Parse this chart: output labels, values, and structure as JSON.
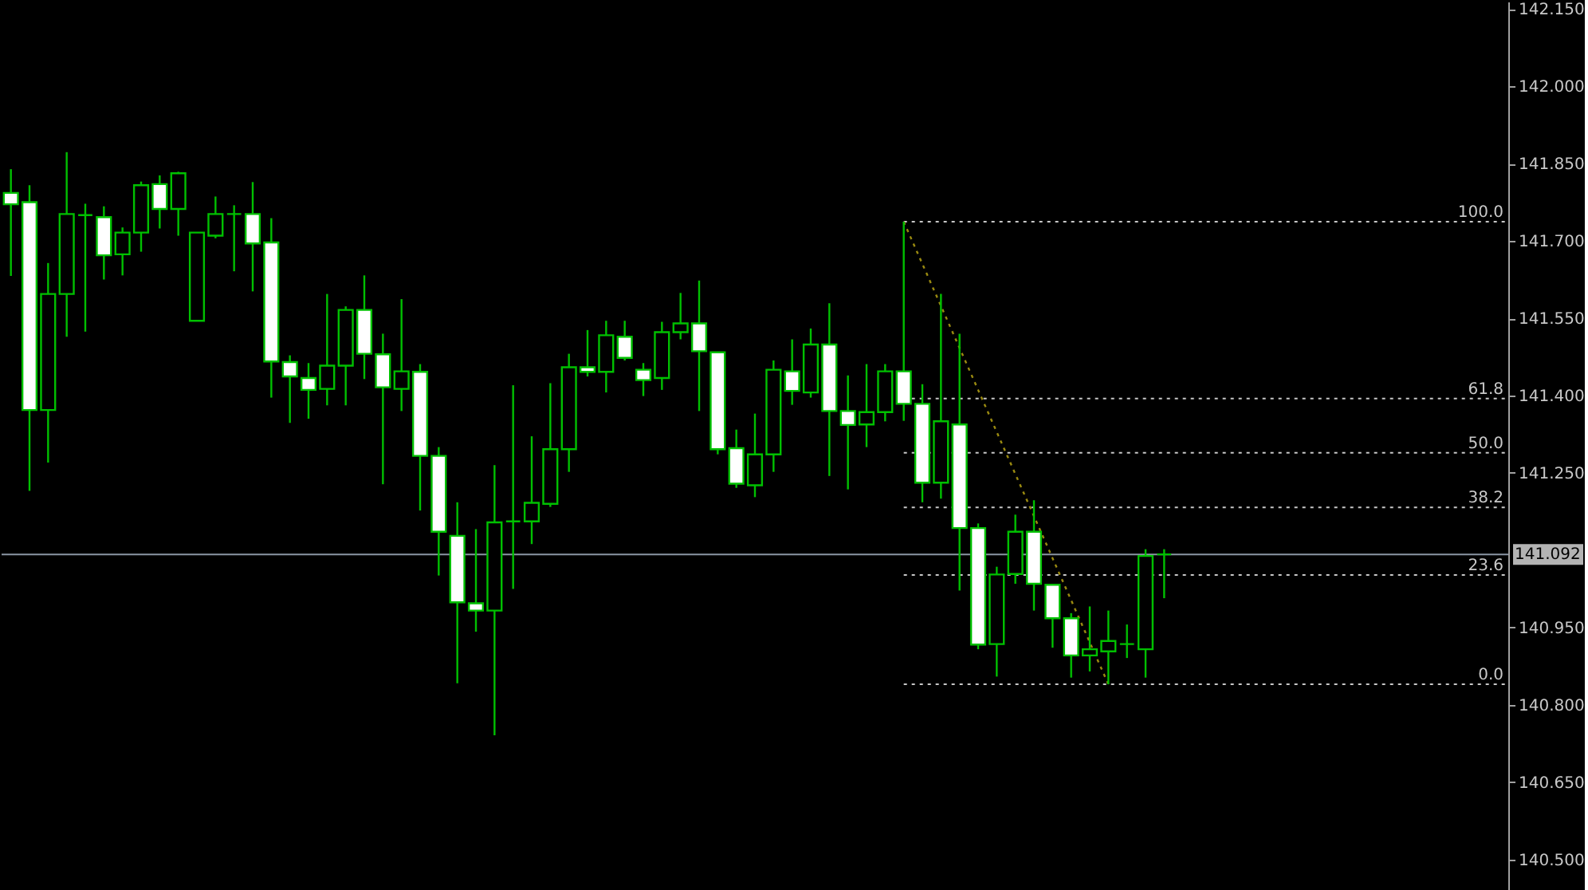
{
  "chart_data": {
    "type": "candlestick",
    "color": "#00c000",
    "categories": [
      null,
      null,
      null,
      null,
      null,
      null,
      null,
      null,
      null,
      null,
      null,
      null,
      null,
      null,
      null,
      null,
      null,
      null,
      null,
      null,
      null,
      null,
      null,
      null,
      null,
      null,
      null,
      null,
      null,
      null,
      null,
      null,
      null,
      null,
      null,
      null,
      null,
      null,
      null,
      null,
      null,
      null,
      null,
      null,
      null,
      null,
      null,
      null,
      null,
      null,
      null,
      null,
      null,
      null,
      null,
      null,
      null,
      null,
      null,
      null,
      null,
      null,
      null,
      null,
      null,
      null,
      null,
      null,
      null,
      null,
      null,
      null,
      null,
      null,
      null,
      null,
      null,
      null,
      null,
      null,
      null
    ],
    "ohlc": [
      [
        141.793,
        141.839,
        141.632,
        141.771
      ],
      [
        141.775,
        141.808,
        141.215,
        141.372
      ],
      [
        141.372,
        141.657,
        141.27,
        141.597
      ],
      [
        141.597,
        141.872,
        141.514,
        141.752
      ],
      [
        141.75,
        141.772,
        141.524,
        141.75
      ],
      [
        141.746,
        141.767,
        141.625,
        141.672
      ],
      [
        141.674,
        141.726,
        141.633,
        141.716
      ],
      [
        141.716,
        141.815,
        141.679,
        141.808
      ],
      [
        141.81,
        141.827,
        141.724,
        141.762
      ],
      [
        141.762,
        141.834,
        141.71,
        141.831
      ],
      [
        141.545,
        141.716,
        141.545,
        141.716
      ],
      [
        141.71,
        141.786,
        141.705,
        141.752
      ],
      [
        141.752,
        141.769,
        141.641,
        141.752
      ],
      [
        141.752,
        141.814,
        141.602,
        141.695
      ],
      [
        141.697,
        141.744,
        141.396,
        141.466
      ],
      [
        141.465,
        141.478,
        141.347,
        141.437
      ],
      [
        141.434,
        141.463,
        141.355,
        141.411
      ],
      [
        141.413,
        141.597,
        141.381,
        141.458
      ],
      [
        141.458,
        141.573,
        141.381,
        141.566
      ],
      [
        141.566,
        141.633,
        141.432,
        141.481
      ],
      [
        141.48,
        141.52,
        141.228,
        141.416
      ],
      [
        141.413,
        141.587,
        141.37,
        141.447
      ],
      [
        141.446,
        141.461,
        141.177,
        141.283
      ],
      [
        141.283,
        141.3,
        141.051,
        141.136
      ],
      [
        141.128,
        141.193,
        140.842,
        140.999
      ],
      [
        140.997,
        141.141,
        140.942,
        140.983
      ],
      [
        140.983,
        141.265,
        140.741,
        141.154
      ],
      [
        141.156,
        141.42,
        141.025,
        141.156
      ],
      [
        141.156,
        141.321,
        141.112,
        141.192
      ],
      [
        141.19,
        141.424,
        141.184,
        141.296
      ],
      [
        141.296,
        141.481,
        141.252,
        141.455
      ],
      [
        141.455,
        141.527,
        141.437,
        141.446
      ],
      [
        141.446,
        141.545,
        141.406,
        141.517
      ],
      [
        141.514,
        141.545,
        141.468,
        141.473
      ],
      [
        141.45,
        141.463,
        141.399,
        141.43
      ],
      [
        141.434,
        141.543,
        141.411,
        141.523
      ],
      [
        141.523,
        141.599,
        141.509,
        141.54
      ],
      [
        141.54,
        141.623,
        141.37,
        141.486
      ],
      [
        141.484,
        141.484,
        141.286,
        141.296
      ],
      [
        141.298,
        141.334,
        141.221,
        141.229
      ],
      [
        141.226,
        141.365,
        141.203,
        141.286
      ],
      [
        141.286,
        141.468,
        141.252,
        141.45
      ],
      [
        141.447,
        141.509,
        141.382,
        141.409
      ],
      [
        141.406,
        141.53,
        141.396,
        141.499
      ],
      [
        141.499,
        141.579,
        141.244,
        141.37
      ],
      [
        141.37,
        141.439,
        141.218,
        141.343
      ],
      [
        141.344,
        141.461,
        141.3,
        141.368
      ],
      [
        141.368,
        141.461,
        141.35,
        141.447
      ],
      [
        141.447,
        141.737,
        141.351,
        141.384
      ],
      [
        141.384,
        141.422,
        141.193,
        141.231
      ],
      [
        141.231,
        141.597,
        141.2,
        141.35
      ],
      [
        141.344,
        141.52,
        141.022,
        141.143
      ],
      [
        141.143,
        141.152,
        140.908,
        140.917
      ],
      [
        140.918,
        141.068,
        140.855,
        141.053
      ],
      [
        141.054,
        141.169,
        141.035,
        141.136
      ],
      [
        141.136,
        141.197,
        140.983,
        141.035
      ],
      [
        141.033,
        141.035,
        140.911,
        140.968
      ],
      [
        140.968,
        140.978,
        140.853,
        140.896
      ],
      [
        140.896,
        140.991,
        140.865,
        140.908
      ],
      [
        140.904,
        140.983,
        140.84,
        140.924
      ],
      [
        140.918,
        140.956,
        140.891,
        140.918
      ],
      [
        140.908,
        141.102,
        140.853,
        141.089
      ],
      [
        141.092,
        141.102,
        141.007,
        141.092
      ],
      null,
      null,
      null,
      null,
      null,
      null,
      null,
      null,
      null,
      null,
      null,
      null,
      null,
      null,
      null,
      null,
      null,
      null
    ],
    "series": [
      {
        "type": "line",
        "color": "#9a8a10",
        "line_style": "dotted",
        "values": [
          null,
          null,
          null,
          null,
          null,
          null,
          null,
          null,
          null,
          null,
          null,
          null,
          null,
          null,
          null,
          null,
          null,
          null,
          null,
          null,
          null,
          null,
          null,
          null,
          null,
          null,
          null,
          null,
          null,
          null,
          null,
          null,
          null,
          null,
          null,
          null,
          null,
          null,
          null,
          null,
          null,
          null,
          null,
          null,
          null,
          null,
          null,
          null,
          141.737,
          null,
          null,
          null,
          null,
          null,
          null,
          null,
          null,
          null,
          null,
          140.84,
          null,
          null,
          null,
          null,
          null,
          null,
          null,
          null,
          null,
          null,
          null,
          null,
          null,
          null,
          null,
          null,
          null,
          null,
          null,
          null,
          null
        ]
      }
    ],
    "ylim": [
      140.438,
      142.164
    ],
    "yticks": [
      {
        "value": 140.5,
        "label": "140.500"
      },
      {
        "value": 140.65,
        "label": "140.650"
      },
      {
        "value": 140.8,
        "label": "140.800"
      },
      {
        "value": 140.95,
        "label": "140.950"
      },
      {
        "value": 141.25,
        "label": "141.250"
      },
      {
        "value": 141.4,
        "label": "141.400"
      },
      {
        "value": 141.55,
        "label": "141.550"
      },
      {
        "value": 141.7,
        "label": "141.700"
      },
      {
        "value": 141.85,
        "label": "141.850"
      },
      {
        "value": 142.0,
        "label": "142.000"
      },
      {
        "value": 142.15,
        "label": "142.150"
      }
    ],
    "ref_lines": [
      {
        "axis": "y",
        "value": 141.737,
        "color": "#c8c8c8",
        "line_style": "dotted"
      },
      {
        "axis": "y",
        "value": 141.394,
        "color": "#c8c8c8",
        "line_style": "dotted"
      },
      {
        "axis": "y",
        "value": 141.289,
        "color": "#c8c8c8",
        "line_style": "dotted"
      },
      {
        "axis": "y",
        "value": 141.183,
        "color": "#c8c8c8",
        "line_style": "dotted"
      },
      {
        "axis": "y",
        "value": 141.052,
        "color": "#c8c8c8",
        "line_style": "dotted"
      },
      {
        "axis": "y",
        "value": 140.84,
        "color": "#c8c8c8",
        "line_style": "dotted"
      },
      {
        "axis": "y",
        "value": 141.092,
        "label": "141.092",
        "color": "#8a96a4",
        "line_style": "solid"
      }
    ],
    "annotations": [
      {
        "text": "100.0",
        "y": 141.737
      },
      {
        "text": "61.8",
        "y": 141.394
      },
      {
        "text": "50.0",
        "y": 141.289
      },
      {
        "text": "38.2",
        "y": 141.183
      },
      {
        "text": "23.6",
        "y": 141.052
      },
      {
        "text": "0.0",
        "y": 140.84
      }
    ],
    "grid": false,
    "tick_labels": "y"
  }
}
